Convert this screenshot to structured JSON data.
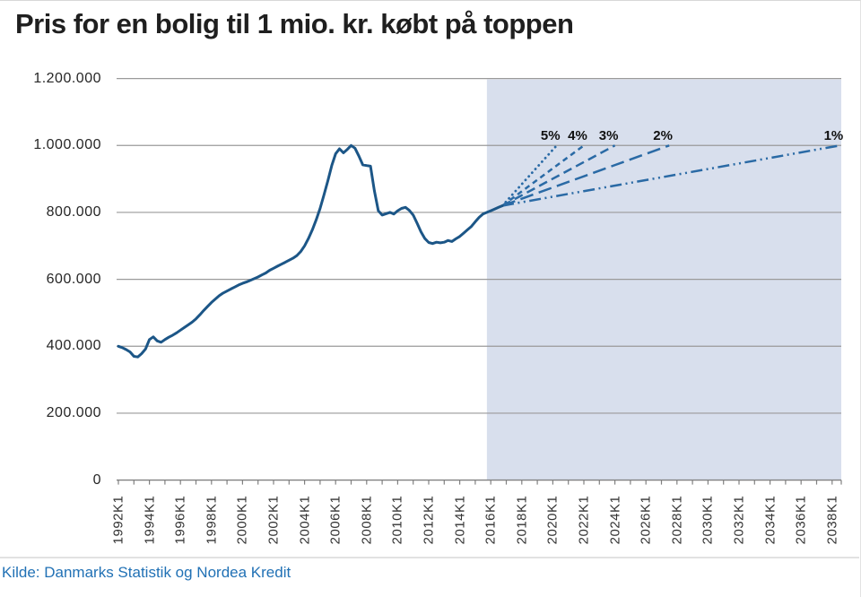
{
  "title": "Pris for en bolig til 1 mio. kr. købt på toppen",
  "source": "Kilde: Danmarks Statistik og Nordea Kredit",
  "colors": {
    "line": "#1c5687",
    "projection": "#2a6aa5",
    "forecast_bg": "#d8dfed",
    "gridline": "#9a9a9a",
    "axis": "#808080",
    "separator": "#c4c4c4",
    "title_text": "#1f1f1f",
    "label_text": "#262626",
    "source_text": "#2171b5"
  },
  "y_axis": {
    "min": 0,
    "max": 1200000,
    "ticks": [
      {
        "value": 1200000,
        "label": "1.200.000"
      },
      {
        "value": 1000000,
        "label": "1.000.000"
      },
      {
        "value": 800000,
        "label": "800.000"
      },
      {
        "value": 600000,
        "label": "600.000"
      },
      {
        "value": 400000,
        "label": "400.000"
      },
      {
        "value": 200000,
        "label": "200.000"
      },
      {
        "value": 0,
        "label": "0"
      }
    ]
  },
  "x_axis": {
    "start_year": 1992,
    "end_year": 2038,
    "tick_every_years": 1,
    "label_every_years": 2,
    "labels": [
      "1992K1",
      "1994K1",
      "1996K1",
      "1998K1",
      "2000K1",
      "2002K1",
      "2004K1",
      "2006K1",
      "2008K1",
      "2010K1",
      "2012K1",
      "2014K1",
      "2016K1",
      "2018K1",
      "2020K1",
      "2022K1",
      "2024K1",
      "2026K1",
      "2028K1",
      "2030K1",
      "2032K1",
      "2034K1",
      "2036K1",
      "2038K1"
    ]
  },
  "chart_data": {
    "type": "line",
    "unit": "kr.",
    "ylim": [
      0,
      1200000
    ],
    "xlim": [
      "1992K1",
      "2038K3"
    ],
    "grid": "horizontal",
    "forecast_region_start": "2015K4",
    "historical": {
      "start": "1992K1",
      "frequency": "quarterly",
      "values": [
        400000,
        396000,
        390000,
        383000,
        370000,
        368000,
        378000,
        392000,
        420000,
        428000,
        416000,
        412000,
        420000,
        427000,
        433000,
        440000,
        448000,
        456000,
        464000,
        472000,
        482000,
        494000,
        507000,
        519000,
        531000,
        541000,
        551000,
        559000,
        565000,
        571000,
        577000,
        583000,
        588000,
        592000,
        597000,
        602000,
        607000,
        613000,
        619000,
        627000,
        633000,
        639000,
        645000,
        651000,
        657000,
        663000,
        671000,
        683000,
        700000,
        722000,
        748000,
        778000,
        812000,
        852000,
        895000,
        940000,
        975000,
        990000,
        978000,
        988000,
        1000000,
        992000,
        968000,
        942000,
        940000,
        938000,
        865000,
        805000,
        792000,
        796000,
        800000,
        795000,
        805000,
        812000,
        815000,
        806000,
        792000,
        768000,
        742000,
        722000,
        710000,
        707000,
        711000,
        709000,
        711000,
        716000,
        713000,
        721000,
        728000,
        738000,
        748000,
        758000,
        772000,
        785000,
        795000,
        800000,
        805000,
        810000,
        815000,
        820000
      ]
    },
    "projections": [
      {
        "label": "5%",
        "growth_rate_pct": 5,
        "dash": "dotted",
        "start": {
          "period": "2016K4",
          "value": 820000
        },
        "end": {
          "period": "2020K2",
          "value": 1000000
        }
      },
      {
        "label": "4%",
        "growth_rate_pct": 4,
        "dash": "dash-sm",
        "start": {
          "period": "2016K4",
          "value": 820000
        },
        "end": {
          "period": "2022K1",
          "value": 1000000
        }
      },
      {
        "label": "3%",
        "growth_rate_pct": 3,
        "dash": "dash-md",
        "start": {
          "period": "2016K4",
          "value": 820000
        },
        "end": {
          "period": "2024K1",
          "value": 1000000
        }
      },
      {
        "label": "2%",
        "growth_rate_pct": 2,
        "dash": "dash-lg",
        "start": {
          "period": "2016K4",
          "value": 820000
        },
        "end": {
          "period": "2027K3",
          "value": 1000000
        }
      },
      {
        "label": "1%",
        "growth_rate_pct": 1,
        "dash": "dash-dot-dot",
        "start": {
          "period": "2016K4",
          "value": 820000
        },
        "end": {
          "period": "2038K3",
          "value": 1000000
        }
      }
    ]
  }
}
